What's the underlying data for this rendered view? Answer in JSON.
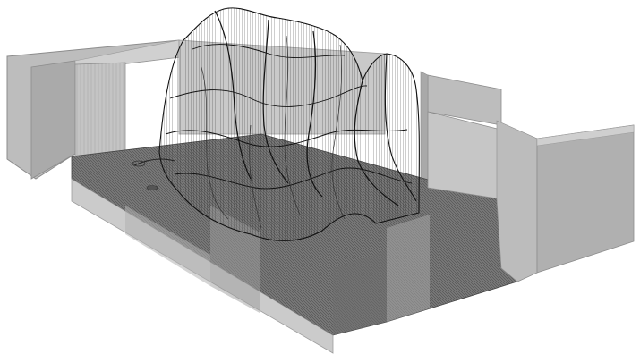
{
  "figure": {
    "background_color": "#ffffff",
    "wall_fill_color": "#b9b9b9",
    "wall_edge_color": "#8c8c8c",
    "floor_mesh_color": "#5a5a5a",
    "wireframe_color": "#111111"
  }
}
